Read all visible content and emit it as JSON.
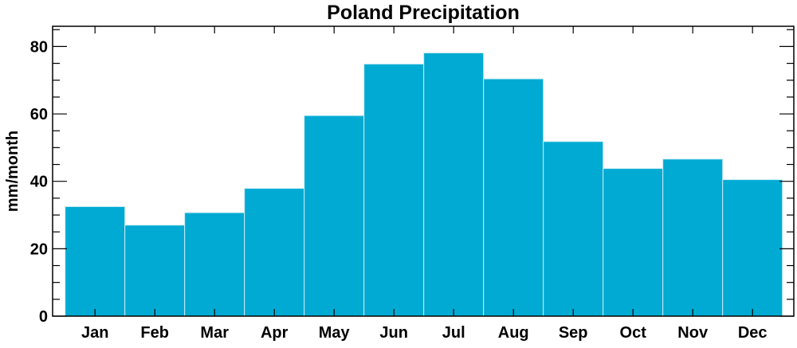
{
  "chart_data": {
    "type": "bar",
    "title": "Poland Precipitation",
    "xlabel": "",
    "ylabel": "mm/month",
    "categories": [
      "Jan",
      "Feb",
      "Mar",
      "Apr",
      "May",
      "Jun",
      "Jul",
      "Aug",
      "Sep",
      "Oct",
      "Nov",
      "Dec"
    ],
    "values": [
      32.5,
      27.0,
      30.7,
      37.9,
      59.5,
      74.8,
      78.1,
      70.4,
      51.8,
      43.8,
      46.6,
      40.5
    ],
    "ylim": [
      0,
      86
    ],
    "yticks": [
      0,
      20,
      40,
      60,
      80
    ],
    "yminor_step": 5,
    "grid": false,
    "bar_color": "#00aad2",
    "bar_edge_color": "#c8ecf6"
  }
}
